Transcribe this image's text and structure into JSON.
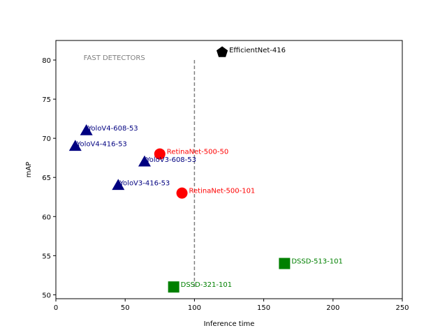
{
  "chart_data": {
    "type": "scatter",
    "title": "",
    "xlabel": "Inference time",
    "ylabel": "mAP",
    "xlim": [
      0,
      250
    ],
    "ylim": [
      49.5,
      82.5
    ],
    "xticks": [
      "0",
      "50",
      "100",
      "150",
      "200",
      "250"
    ],
    "yticks": [
      "50",
      "55",
      "60",
      "65",
      "70",
      "75",
      "80"
    ],
    "grid": false,
    "annotation": {
      "text": "FAST DETECTORS",
      "x": 20,
      "y": 80,
      "color": "#808080"
    },
    "threshold_line": {
      "x": 100,
      "y_from": 51,
      "y_to": 80,
      "style": "dashed",
      "color": "#808080"
    },
    "points": [
      {
        "label": "YoloV4-608-53",
        "x": 22,
        "y": 71,
        "marker": "triangle",
        "color": "#000080"
      },
      {
        "label": "YoloV4-416-53",
        "x": 14,
        "y": 69,
        "marker": "triangle",
        "color": "#000080"
      },
      {
        "label": "YoloV3-608-53",
        "x": 64,
        "y": 67,
        "marker": "triangle",
        "color": "#000080"
      },
      {
        "label": "YoloV3-416-53",
        "x": 45,
        "y": 64,
        "marker": "triangle",
        "color": "#000080"
      },
      {
        "label": "RetinaNet-500-50",
        "x": 75,
        "y": 68,
        "marker": "circle",
        "color": "#ff0000"
      },
      {
        "label": "RetinaNet-500-101",
        "x": 91,
        "y": 63,
        "marker": "circle",
        "color": "#ff0000"
      },
      {
        "label": "DSSD-513-101",
        "x": 165,
        "y": 54,
        "marker": "square",
        "color": "#008000"
      },
      {
        "label": "DSSD-321-101",
        "x": 85,
        "y": 51,
        "marker": "square",
        "color": "#008000"
      },
      {
        "label": "EfficientNet-416",
        "x": 120,
        "y": 81,
        "marker": "pentagon",
        "color": "#000000"
      }
    ]
  }
}
